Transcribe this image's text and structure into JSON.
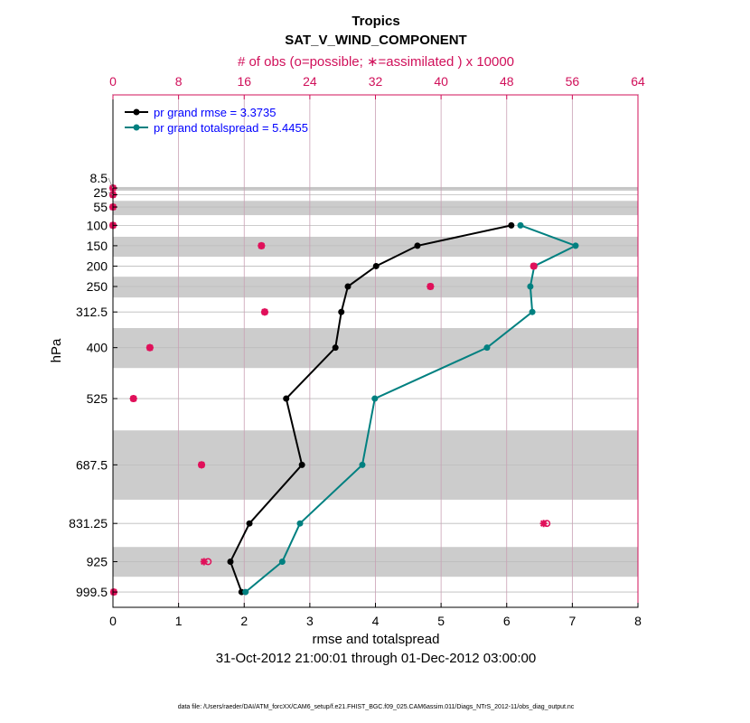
{
  "chart_data": {
    "type": "line",
    "title": "Tropics",
    "subtitle": "SAT_V_WIND_COMPONENT",
    "top_xlabel": "# of obs (o=possible; ∗=assimilated ) x 10000",
    "xlabel": "rmse and totalspread",
    "ylabel": "hPa",
    "date_range": "31-Oct-2012 21:00:01 through 01-Dec-2012 03:00:00",
    "footer": "data file: /Users/raeder/DAI/ATM_forcXX/CAM6_setup/f.e21.FHIST_BGC.f09_025.CAM6assim.011/Diags_NTrS_2012-11/obs_diag_output.nc",
    "xlim": [
      0,
      8
    ],
    "xticks": [
      0,
      1,
      2,
      3,
      4,
      5,
      6,
      7,
      8
    ],
    "top_xlim": [
      0,
      64
    ],
    "top_xticks": [
      0,
      8,
      16,
      24,
      32,
      40,
      48,
      56,
      64
    ],
    "ylim": [
      -220,
      1037
    ],
    "levels": [
      8.5,
      25,
      55,
      100,
      150,
      200,
      250,
      312.5,
      400,
      525,
      687.5,
      831.25,
      925,
      999.5
    ],
    "level_labels": [
      "8.5",
      "25",
      "55",
      "100",
      "150",
      "200",
      "250",
      "312.5",
      "400",
      "525",
      "687.5",
      "831.25",
      "925",
      "999.5"
    ],
    "shaded_bands": [
      [
        6,
        15
      ],
      [
        40,
        75
      ],
      [
        128,
        177
      ],
      [
        226,
        277
      ],
      [
        352,
        450
      ],
      [
        603,
        773
      ],
      [
        889,
        962
      ]
    ],
    "series": [
      {
        "name": "pr grand rmse = 3.3735",
        "color": "#000000",
        "levels": [
          100,
          150,
          200,
          250,
          312.5,
          400,
          525,
          687.5,
          831.25,
          925,
          999.5
        ],
        "values": [
          6.07,
          4.64,
          4.01,
          3.58,
          3.48,
          3.39,
          2.64,
          2.88,
          2.08,
          1.79,
          1.96
        ]
      },
      {
        "name": "pr grand totalspread = 5.4455",
        "color": "#008080",
        "levels": [
          100,
          150,
          200,
          250,
          312.5,
          400,
          525,
          687.5,
          831.25,
          925,
          999.5
        ],
        "values": [
          6.21,
          7.05,
          6.42,
          6.36,
          6.39,
          5.7,
          3.99,
          3.8,
          2.85,
          2.58,
          2.02
        ]
      }
    ],
    "obs_possible": {
      "levels": [
        8.5,
        25,
        55,
        100,
        150,
        200,
        250,
        312.5,
        400,
        525,
        687.5,
        831.25,
        925,
        999.5
      ],
      "values": [
        0,
        0,
        0,
        0,
        18.1,
        51.3,
        38.7,
        18.5,
        4.5,
        2.5,
        10.8,
        52.9,
        11.6,
        0.1
      ]
    },
    "obs_assimilated": {
      "levels": [
        8.5,
        25,
        55,
        100,
        150,
        200,
        250,
        312.5,
        400,
        525,
        687.5,
        831.25,
        925,
        999.5
      ],
      "values": [
        0,
        0,
        0,
        0,
        18.1,
        51.3,
        38.7,
        18.5,
        4.5,
        2.5,
        10.8,
        52.5,
        11.1,
        0.1
      ]
    },
    "colors": {
      "obs": "#e0105a",
      "top_axis": "#d0105a",
      "legend_text": "#0000ff",
      "band": "#cccccc"
    }
  }
}
